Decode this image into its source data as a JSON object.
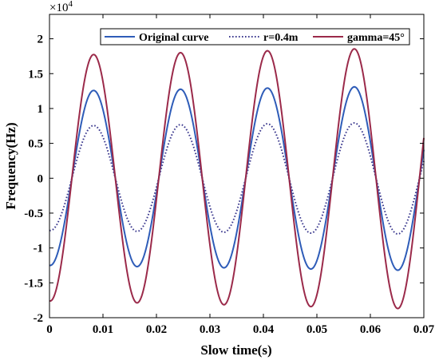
{
  "chart_data": {
    "type": "line",
    "xlabel": "Slow time(s)",
    "ylabel": "Frequency(Hz)",
    "xlim": [
      0,
      0.07
    ],
    "ylim": [
      -20000,
      23500
    ],
    "y_exponent_label": "×10",
    "y_exponent_power": "4",
    "x_ticks": [
      0,
      0.01,
      0.02,
      0.03,
      0.04,
      0.05,
      0.06,
      0.07
    ],
    "x_tick_labels": [
      "0",
      "0.01",
      "0.02",
      "0.03",
      "0.04",
      "0.05",
      "0.06",
      "0.07"
    ],
    "y_ticks": [
      -20000,
      -15000,
      -10000,
      -5000,
      0,
      5000,
      10000,
      15000,
      20000
    ],
    "y_tick_labels": [
      "-2",
      "-1.5",
      "-1",
      "-0.5",
      "0",
      "0.5",
      "1",
      "1.5",
      "2"
    ],
    "legend_position": "top",
    "grid": false,
    "period_s": 0.01625,
    "series": [
      {
        "name": "Original curve",
        "color": "#2e5cb8",
        "style": "solid",
        "x": [
          0,
          0.00825,
          0.0165,
          0.02475,
          0.033,
          0.04125,
          0.0495,
          0.05775,
          0.066,
          0.07
        ],
        "y": [
          -12500,
          12600,
          -12800,
          12800,
          -12900,
          13000,
          -13100,
          13200,
          -13200,
          6000
        ]
      },
      {
        "name": "r=0.4m",
        "color": "#3c3a8f",
        "style": "dotted",
        "x": [
          0,
          0.00825,
          0.0165,
          0.02475,
          0.033,
          0.04125,
          0.0495,
          0.05775,
          0.066,
          0.07
        ],
        "y": [
          -7500,
          7600,
          -7700,
          7700,
          -7800,
          7800,
          -7900,
          7900,
          -8000,
          3800
        ]
      },
      {
        "name": "gamma=45°",
        "color": "#9b2a4a",
        "style": "solid",
        "x": [
          0,
          0.00825,
          0.0165,
          0.02475,
          0.033,
          0.04125,
          0.0495,
          0.05775,
          0.066,
          0.07
        ],
        "y": [
          -17600,
          17900,
          -18100,
          18200,
          -18300,
          18400,
          -18500,
          18600,
          -18700,
          8500
        ]
      }
    ]
  }
}
